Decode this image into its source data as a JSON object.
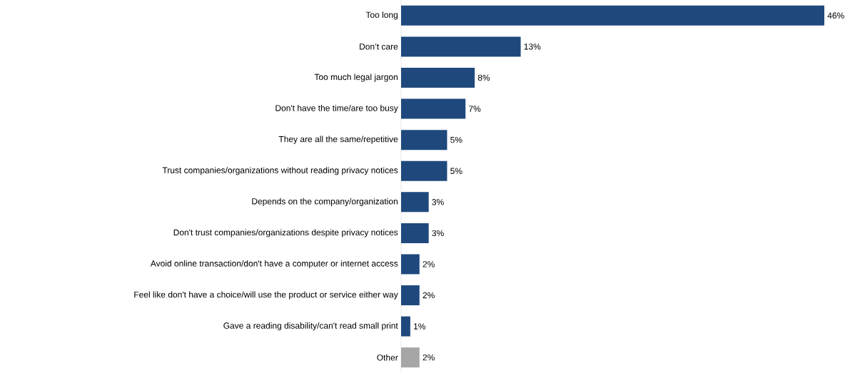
{
  "chart_data": {
    "type": "bar",
    "orientation": "horizontal",
    "categories": [
      "Too long",
      "Don’t care",
      "Too much legal jargon",
      "Don't have the time/are too busy",
      "They are all the same/repetitive",
      "Trust companies/organizations without reading privacy notices",
      "Depends on the company/organization",
      "Don't trust companies/organizations despite privacy notices",
      "Avoid online transaction/don't have a computer or internet access",
      "Feel like don't have a choice/will use the product or service either way",
      "Gave a reading disability/can't read small print",
      "Other"
    ],
    "values": [
      46,
      13,
      8,
      7,
      5,
      5,
      3,
      3,
      2,
      2,
      1,
      2
    ],
    "value_labels": [
      "46%",
      "13%",
      "8%",
      "7%",
      "5%",
      "5%",
      "3%",
      "3%",
      "2%",
      "2%",
      "1%",
      "2%"
    ],
    "colors": [
      "#1f497d",
      "#1f497d",
      "#1f497d",
      "#1f497d",
      "#1f497d",
      "#1f497d",
      "#1f497d",
      "#1f497d",
      "#1f497d",
      "#1f497d",
      "#1f497d",
      "#a6a6a6"
    ]
  }
}
